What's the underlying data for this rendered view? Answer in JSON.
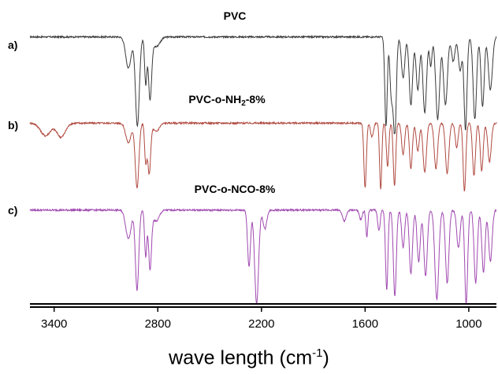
{
  "chart_data": {
    "type": "line",
    "xlabel_main": "wave length (cm",
    "xlabel_sup": "-1",
    "xlabel_close": ")",
    "x_reversed": true,
    "xlim": [
      3540,
      840
    ],
    "xticks": [
      3400,
      2800,
      2200,
      1600,
      1000
    ],
    "grid": false,
    "series": [
      {
        "tag": "a)",
        "title": "PVC",
        "color": "#3a3a3a",
        "baseline": 0.985,
        "noise": 0.008,
        "bands": [
          [
            2970,
            0.32,
            22
          ],
          [
            2918,
            0.92,
            16
          ],
          [
            2870,
            0.48,
            9
          ],
          [
            2845,
            0.62,
            13
          ],
          [
            2810,
            0.1,
            30
          ],
          [
            1479,
            0.92,
            10
          ],
          [
            1448,
            0.6,
            12
          ],
          [
            1428,
            1.0,
            12
          ],
          [
            1380,
            0.42,
            14
          ],
          [
            1335,
            0.7,
            14
          ],
          [
            1295,
            0.55,
            14
          ],
          [
            1255,
            0.78,
            15
          ],
          [
            1220,
            0.3,
            10
          ],
          [
            1180,
            0.85,
            16
          ],
          [
            1135,
            0.7,
            16
          ],
          [
            1090,
            0.25,
            14
          ],
          [
            1050,
            0.35,
            14
          ],
          [
            1019,
            0.96,
            12
          ],
          [
            965,
            0.85,
            14
          ],
          [
            920,
            0.72,
            13
          ],
          [
            875,
            0.55,
            16
          ]
        ]
      },
      {
        "tag": "b)",
        "title_pre": "PVC-o-NH",
        "title_sub": "2",
        "title_post": "-8%",
        "color": "#b04a40",
        "baseline": 0.985,
        "noise": 0.012,
        "bands": [
          [
            3450,
            0.18,
            40
          ],
          [
            3360,
            0.2,
            35
          ],
          [
            2970,
            0.28,
            22
          ],
          [
            2920,
            0.93,
            15
          ],
          [
            2870,
            0.55,
            9
          ],
          [
            2850,
            0.72,
            12
          ],
          [
            2810,
            0.12,
            25
          ],
          [
            1600,
            0.93,
            10
          ],
          [
            1560,
            0.2,
            12
          ],
          [
            1510,
            0.95,
            9
          ],
          [
            1470,
            0.62,
            10
          ],
          [
            1430,
            0.9,
            10
          ],
          [
            1380,
            0.45,
            12
          ],
          [
            1335,
            0.65,
            12
          ],
          [
            1295,
            0.4,
            12
          ],
          [
            1255,
            0.7,
            14
          ],
          [
            1190,
            0.65,
            14
          ],
          [
            1125,
            0.72,
            14
          ],
          [
            1070,
            0.35,
            12
          ],
          [
            1025,
            0.98,
            11
          ],
          [
            970,
            0.75,
            12
          ],
          [
            925,
            0.68,
            12
          ],
          [
            880,
            0.55,
            14
          ]
        ]
      },
      {
        "tag": "c)",
        "title": "PVC-o-NCO-8%",
        "color": "#a049b0",
        "baseline": 0.985,
        "noise": 0.009,
        "bands": [
          [
            2970,
            0.3,
            22
          ],
          [
            2920,
            0.85,
            14
          ],
          [
            2870,
            0.5,
            9
          ],
          [
            2845,
            0.62,
            12
          ],
          [
            2810,
            0.12,
            25
          ],
          [
            2272,
            0.6,
            12
          ],
          [
            2228,
            1.0,
            16
          ],
          [
            2180,
            0.2,
            15
          ],
          [
            1720,
            0.12,
            15
          ],
          [
            1625,
            0.1,
            12
          ],
          [
            1590,
            0.28,
            8
          ],
          [
            1520,
            0.22,
            10
          ],
          [
            1475,
            0.85,
            10
          ],
          [
            1428,
            0.92,
            12
          ],
          [
            1380,
            0.4,
            12
          ],
          [
            1335,
            0.68,
            13
          ],
          [
            1290,
            0.55,
            13
          ],
          [
            1250,
            0.7,
            14
          ],
          [
            1185,
            0.95,
            16
          ],
          [
            1125,
            0.78,
            14
          ],
          [
            1060,
            0.4,
            14
          ],
          [
            1015,
            1.0,
            12
          ],
          [
            960,
            0.78,
            13
          ],
          [
            915,
            0.66,
            13
          ],
          [
            875,
            0.55,
            14
          ]
        ]
      }
    ]
  }
}
